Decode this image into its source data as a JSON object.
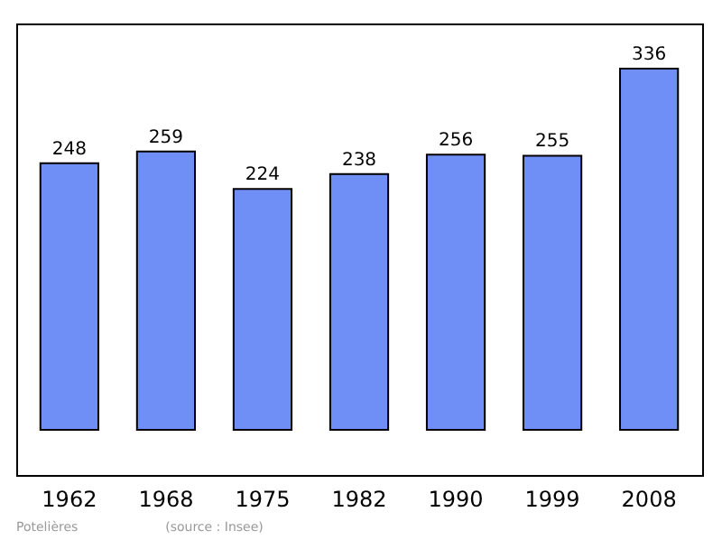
{
  "chart_data": {
    "type": "bar",
    "categories": [
      "1962",
      "1968",
      "1975",
      "1982",
      "1990",
      "1999",
      "2008"
    ],
    "values": [
      248,
      259,
      224,
      238,
      256,
      255,
      336
    ],
    "color": "#6f8ff7",
    "data_labels": true,
    "annotations": [
      "Potelières",
      "(source : Insee)"
    ]
  }
}
